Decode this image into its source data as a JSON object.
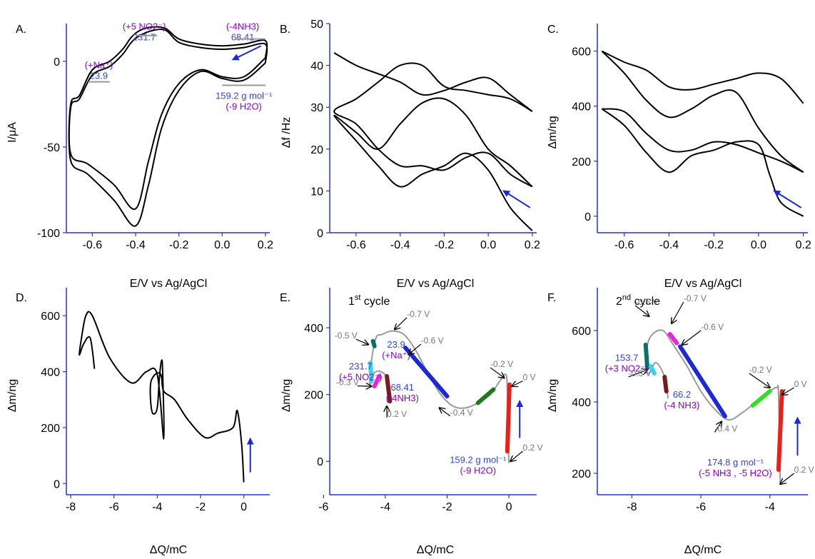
{
  "colors": {
    "axis": "#2233cc",
    "curve": "#000000",
    "blue_text": "#3344dd",
    "purple_text": "#8800cc",
    "gray_text": "#777777",
    "gray_curve": "#9a9a9a",
    "arrow_blue": "#1a2bd6"
  },
  "shared": {
    "ev_label": "E/V vs Ag/AgCl",
    "dq_label": "ΔQ/mC"
  },
  "chart_data": [
    {
      "panel": "A",
      "type": "line",
      "ylabel": "I/μA",
      "xlim": [
        -0.72,
        0.22
      ],
      "ylim": [
        -100,
        22
      ],
      "xticks": [
        "-0.6",
        "-0.4",
        "-0.2",
        "0.0",
        "0.2"
      ],
      "xtick_values": [
        -0.6,
        -0.4,
        -0.2,
        0.0,
        0.2
      ],
      "yticks": [
        "0",
        "-50",
        "-100"
      ],
      "ytick_values": [
        0,
        -50,
        -100
      ],
      "series": [
        {
          "x": [
            0.2,
            0.1,
            0.0,
            -0.1,
            -0.2,
            -0.28,
            -0.34,
            -0.4,
            -0.5,
            -0.62,
            -0.7,
            -0.7,
            -0.66,
            -0.6,
            -0.52,
            -0.46,
            -0.42,
            -0.38,
            -0.32,
            -0.26,
            -0.2,
            -0.1,
            0.0,
            0.1,
            0.2,
            0.2
          ],
          "y": [
            2,
            -9,
            -9,
            -5,
            -13,
            -31,
            -58,
            -86,
            -72,
            -60,
            -54,
            -25,
            -20,
            -5,
            0,
            7,
            14,
            18,
            20,
            19,
            13,
            10,
            9,
            10,
            12,
            2
          ]
        },
        {
          "x": [
            0.2,
            0.1,
            0.0,
            -0.1,
            -0.2,
            -0.28,
            -0.34,
            -0.4,
            -0.5,
            -0.62,
            -0.7,
            -0.7,
            -0.66,
            -0.6,
            -0.52,
            -0.46,
            -0.42,
            -0.38,
            -0.32,
            -0.26,
            -0.2,
            -0.1,
            0.0,
            0.1,
            0.2,
            0.2
          ],
          "y": [
            -1,
            -11,
            -10,
            -6,
            -17,
            -39,
            -72,
            -96,
            -81,
            -66,
            -58,
            -27,
            -22,
            -8,
            -3,
            4,
            11,
            15,
            18,
            18,
            11,
            8,
            7,
            8,
            10,
            -1
          ]
        }
      ],
      "annotations": [
        {
          "lines": [
            "(+5 NO2⁻)",
            "231.7"
          ],
          "x": -0.36,
          "y": 18
        },
        {
          "lines": [
            "(-4NH3)",
            "68.41"
          ],
          "x": 0.11,
          "y": 14
        },
        {
          "lines": [
            "(+Na⁺)",
            "23.9"
          ],
          "x": -0.57,
          "y": -12
        },
        {
          "lines": [
            "159.2 g mol⁻¹",
            "(-9 H2O)"
          ],
          "x": 0.09,
          "y": -14
        }
      ]
    },
    {
      "panel": "B",
      "type": "line",
      "ylabel": "Δf /Hz",
      "xlim": [
        -0.72,
        0.22
      ],
      "ylim": [
        0,
        50
      ],
      "xticks": [
        "-0.6",
        "-0.4",
        "-0.2",
        "0.0",
        "0.2"
      ],
      "xtick_values": [
        -0.6,
        -0.4,
        -0.2,
        0.0,
        0.2
      ],
      "yticks": [
        "0",
        "10",
        "20",
        "30",
        "40",
        "50"
      ],
      "ytick_values": [
        0,
        10,
        20,
        30,
        40,
        50
      ],
      "series": [
        {
          "x": [
            0.2,
            0.1,
            0.0,
            -0.1,
            -0.2,
            -0.3,
            -0.4,
            -0.5,
            -0.6,
            -0.7,
            -0.6,
            -0.5,
            -0.4,
            -0.3,
            -0.2,
            -0.1,
            0.0,
            0.1,
            0.2
          ],
          "y": [
            0.5,
            6,
            15,
            19,
            16,
            14,
            11,
            16,
            22,
            28,
            24,
            20,
            26,
            31,
            32,
            28,
            20,
            16,
            11
          ]
        },
        {
          "x": [
            0.2,
            0.1,
            0.0,
            -0.1,
            -0.2,
            -0.3,
            -0.4,
            -0.5,
            -0.6,
            -0.7,
            -0.6,
            -0.5,
            -0.4,
            -0.3,
            -0.2,
            -0.1,
            0.0,
            0.1,
            0.2
          ],
          "y": [
            11,
            14,
            19,
            18,
            15,
            16,
            16,
            20,
            26,
            29,
            32,
            36,
            40,
            40,
            35,
            34,
            33,
            32,
            29
          ]
        },
        {
          "x": [
            0.2,
            0.1,
            0.0,
            -0.1,
            -0.2,
            -0.3,
            -0.4,
            -0.5,
            -0.6,
            -0.7
          ],
          "y": [
            29,
            33,
            37,
            36,
            34,
            33,
            36,
            38,
            40,
            43
          ]
        }
      ]
    },
    {
      "panel": "C",
      "type": "line",
      "ylabel": "Δm/ng",
      "xlim": [
        -0.72,
        0.22
      ],
      "ylim": [
        -60,
        700
      ],
      "xticks": [
        "-0.6",
        "-0.4",
        "-0.2",
        "0.0",
        "0.2"
      ],
      "xtick_values": [
        -0.6,
        -0.4,
        -0.2,
        0.0,
        0.2
      ],
      "yticks": [
        "0",
        "200",
        "400",
        "600"
      ],
      "ytick_values": [
        0,
        200,
        400,
        600
      ],
      "series": [
        {
          "x": [
            0.2,
            0.1,
            0.05,
            0.0,
            -0.1,
            -0.2,
            -0.3,
            -0.4,
            -0.5,
            -0.6,
            -0.7
          ],
          "y": [
            0,
            50,
            150,
            260,
            270,
            240,
            220,
            160,
            230,
            330,
            390
          ]
        },
        {
          "x": [
            -0.7,
            -0.6,
            -0.5,
            -0.4,
            -0.3,
            -0.2,
            -0.1,
            0.0,
            0.1,
            0.2
          ],
          "y": [
            390,
            380,
            300,
            240,
            240,
            270,
            260,
            230,
            200,
            160
          ]
        },
        {
          "x": [
            0.2,
            0.1,
            0.0,
            -0.1,
            -0.2,
            -0.3,
            -0.4,
            -0.5,
            -0.6,
            -0.7
          ],
          "y": [
            160,
            220,
            320,
            450,
            440,
            390,
            360,
            420,
            520,
            600
          ]
        },
        {
          "x": [
            -0.7,
            -0.6,
            -0.5,
            -0.4,
            -0.3,
            -0.2,
            -0.1,
            0.0,
            0.1,
            0.2
          ],
          "y": [
            600,
            560,
            530,
            470,
            460,
            480,
            500,
            520,
            500,
            410
          ]
        }
      ]
    },
    {
      "panel": "D",
      "type": "line",
      "ylabel": "Δm/ng",
      "xlim": [
        -8.2,
        1.2
      ],
      "ylim": [
        -40,
        700
      ],
      "xticks": [
        "-8",
        "-6",
        "-4",
        "-2",
        "0"
      ],
      "xtick_values": [
        -8,
        -6,
        -4,
        -2,
        0
      ],
      "yticks": [
        "0",
        "200",
        "400",
        "600"
      ],
      "ytick_values": [
        0,
        200,
        400,
        600
      ],
      "series": [
        {
          "x": [
            0.0,
            -0.1,
            -0.3,
            -0.5,
            -1.2,
            -1.8,
            -2.6,
            -3.2,
            -3.7,
            -3.8,
            -3.9,
            -4.1,
            -4.3,
            -4.3,
            -4.2,
            -4.0,
            -3.9,
            -3.8,
            -3.75,
            -3.7,
            -4.0,
            -4.5,
            -5.2,
            -6.2,
            -7.0,
            -7.3,
            -7.5,
            -7.6,
            -7.4,
            -7.1,
            -6.9
          ],
          "y": [
            5,
            140,
            260,
            200,
            180,
            165,
            230,
            300,
            330,
            380,
            395,
            390,
            360,
            290,
            250,
            270,
            380,
            440,
            400,
            160,
            390,
            400,
            360,
            450,
            600,
            600,
            520,
            460,
            500,
            520,
            410
          ]
        }
      ]
    },
    {
      "panel": "E",
      "type": "line",
      "title_main": "1",
      "title_sup": "st",
      "title_rest": " cycle",
      "ylabel": "Δm/ng",
      "xlim": [
        -5.8,
        0.9
      ],
      "ylim": [
        -100,
        520
      ],
      "xticks": [
        "-6",
        "-4",
        "-2",
        "0"
      ],
      "xtick_values": [
        -6,
        -4,
        -2,
        0
      ],
      "yticks": [
        "0",
        "200",
        "400"
      ],
      "ytick_values": [
        0,
        200,
        400
      ],
      "series": [
        {
          "x": [
            0.0,
            -0.05,
            -0.1,
            -0.3,
            -0.6,
            -1.0,
            -1.4,
            -1.8,
            -2.2,
            -2.6,
            -3.0,
            -3.4,
            -3.8,
            -4.1,
            -4.3,
            -4.45,
            -4.5,
            -4.4,
            -4.2,
            -3.95,
            -3.85
          ],
          "y": [
            -5,
            210,
            260,
            240,
            200,
            175,
            160,
            165,
            200,
            260,
            330,
            380,
            390,
            380,
            370,
            300,
            230,
            260,
            270,
            250,
            180
          ]
        }
      ],
      "segments": [
        {
          "color": "#e8211a",
          "x": [
            -0.05,
            0.02
          ],
          "y": [
            30,
            230
          ]
        },
        {
          "color": "#1f7a1f",
          "x": [
            -0.5,
            -1.0
          ],
          "y": [
            215,
            175
          ]
        },
        {
          "color": "#1a2bd6",
          "x": [
            -2.0,
            -3.35
          ],
          "y": [
            195,
            340
          ]
        },
        {
          "color": "#0e6e6e",
          "x": [
            -4.35,
            -4.4
          ],
          "y": [
            345,
            360
          ]
        },
        {
          "color": "#33d6f0",
          "x": [
            -4.45,
            -4.48
          ],
          "y": [
            240,
            295
          ]
        },
        {
          "color": "#ee22dd",
          "x": [
            -4.35,
            -4.2
          ],
          "y": [
            225,
            255
          ]
        },
        {
          "color": "#7a1a1a",
          "x": [
            -3.95,
            -3.85
          ],
          "y": [
            255,
            180
          ]
        }
      ],
      "potential_labels": [
        "-0.7 V",
        "-0.6 V",
        "-0.5 V",
        "-0.3 V",
        "0.2 V",
        "-0.4 V",
        "-0.2 V",
        "0 V",
        "0.2 V"
      ],
      "annotations": [
        [
          "23.9",
          "(+Na⁺)"
        ],
        [
          "231.7",
          "(+5 NO2⁻)"
        ],
        [
          "68.41",
          "(-4NH3)"
        ],
        [
          "159.2 g mol⁻¹",
          "(-9 H2O)"
        ]
      ]
    },
    {
      "panel": "F",
      "type": "line",
      "title_main": "2",
      "title_sup": "nd",
      "title_rest": " cycle",
      "ylabel": "Δm/ng",
      "xlim": [
        -9.0,
        -2.9
      ],
      "ylim": [
        140,
        720
      ],
      "xticks": [
        "-8",
        "-6",
        "-4"
      ],
      "xtick_values": [
        -8,
        -6,
        -4
      ],
      "yticks": [
        "200",
        "400",
        "600"
      ],
      "ytick_values": [
        200,
        400,
        600
      ],
      "series": [
        {
          "x": [
            -3.7,
            -3.75,
            -3.8,
            -4.0,
            -4.4,
            -4.8,
            -5.2,
            -5.6,
            -6.0,
            -6.4,
            -6.8,
            -7.1,
            -7.4,
            -7.55,
            -7.6,
            -7.5,
            -7.3,
            -7.05,
            -6.95
          ],
          "y": [
            170,
            420,
            440,
            430,
            400,
            370,
            350,
            380,
            430,
            500,
            560,
            600,
            590,
            560,
            500,
            480,
            510,
            470,
            410
          ]
        }
      ],
      "segments": [
        {
          "color": "#e8211a",
          "x": [
            -3.75,
            -3.65
          ],
          "y": [
            210,
            430
          ]
        },
        {
          "color": "#33dd22",
          "x": [
            -4.0,
            -4.5
          ],
          "y": [
            430,
            390
          ]
        },
        {
          "color": "#1a2bd6",
          "x": [
            -5.3,
            -6.6
          ],
          "y": [
            360,
            555
          ]
        },
        {
          "color": "#ee22dd",
          "x": [
            -6.7,
            -6.9
          ],
          "y": [
            565,
            590
          ]
        },
        {
          "color": "#0e6e6e",
          "x": [
            -7.55,
            -7.6
          ],
          "y": [
            495,
            560
          ]
        },
        {
          "color": "#33d6f0",
          "x": [
            -7.35,
            -7.45
          ],
          "y": [
            480,
            500
          ]
        },
        {
          "color": "#7a1a1a",
          "x": [
            -7.05,
            -7.0
          ],
          "y": [
            470,
            430
          ]
        }
      ],
      "potential_labels": [
        "-0.7 V",
        "-0.5 V",
        "-0.6 V",
        "-0.3 V",
        "-0.4 V",
        "-0.2 V",
        "0 V",
        "0.2 V"
      ],
      "annotations": [
        [
          "153.7",
          "(+3 NO2⁻)"
        ],
        [
          "66.2",
          "(-4 NH3)"
        ],
        [
          "174.8 g mol⁻¹",
          "(-5 NH3 , -5 H2O)"
        ]
      ]
    }
  ]
}
